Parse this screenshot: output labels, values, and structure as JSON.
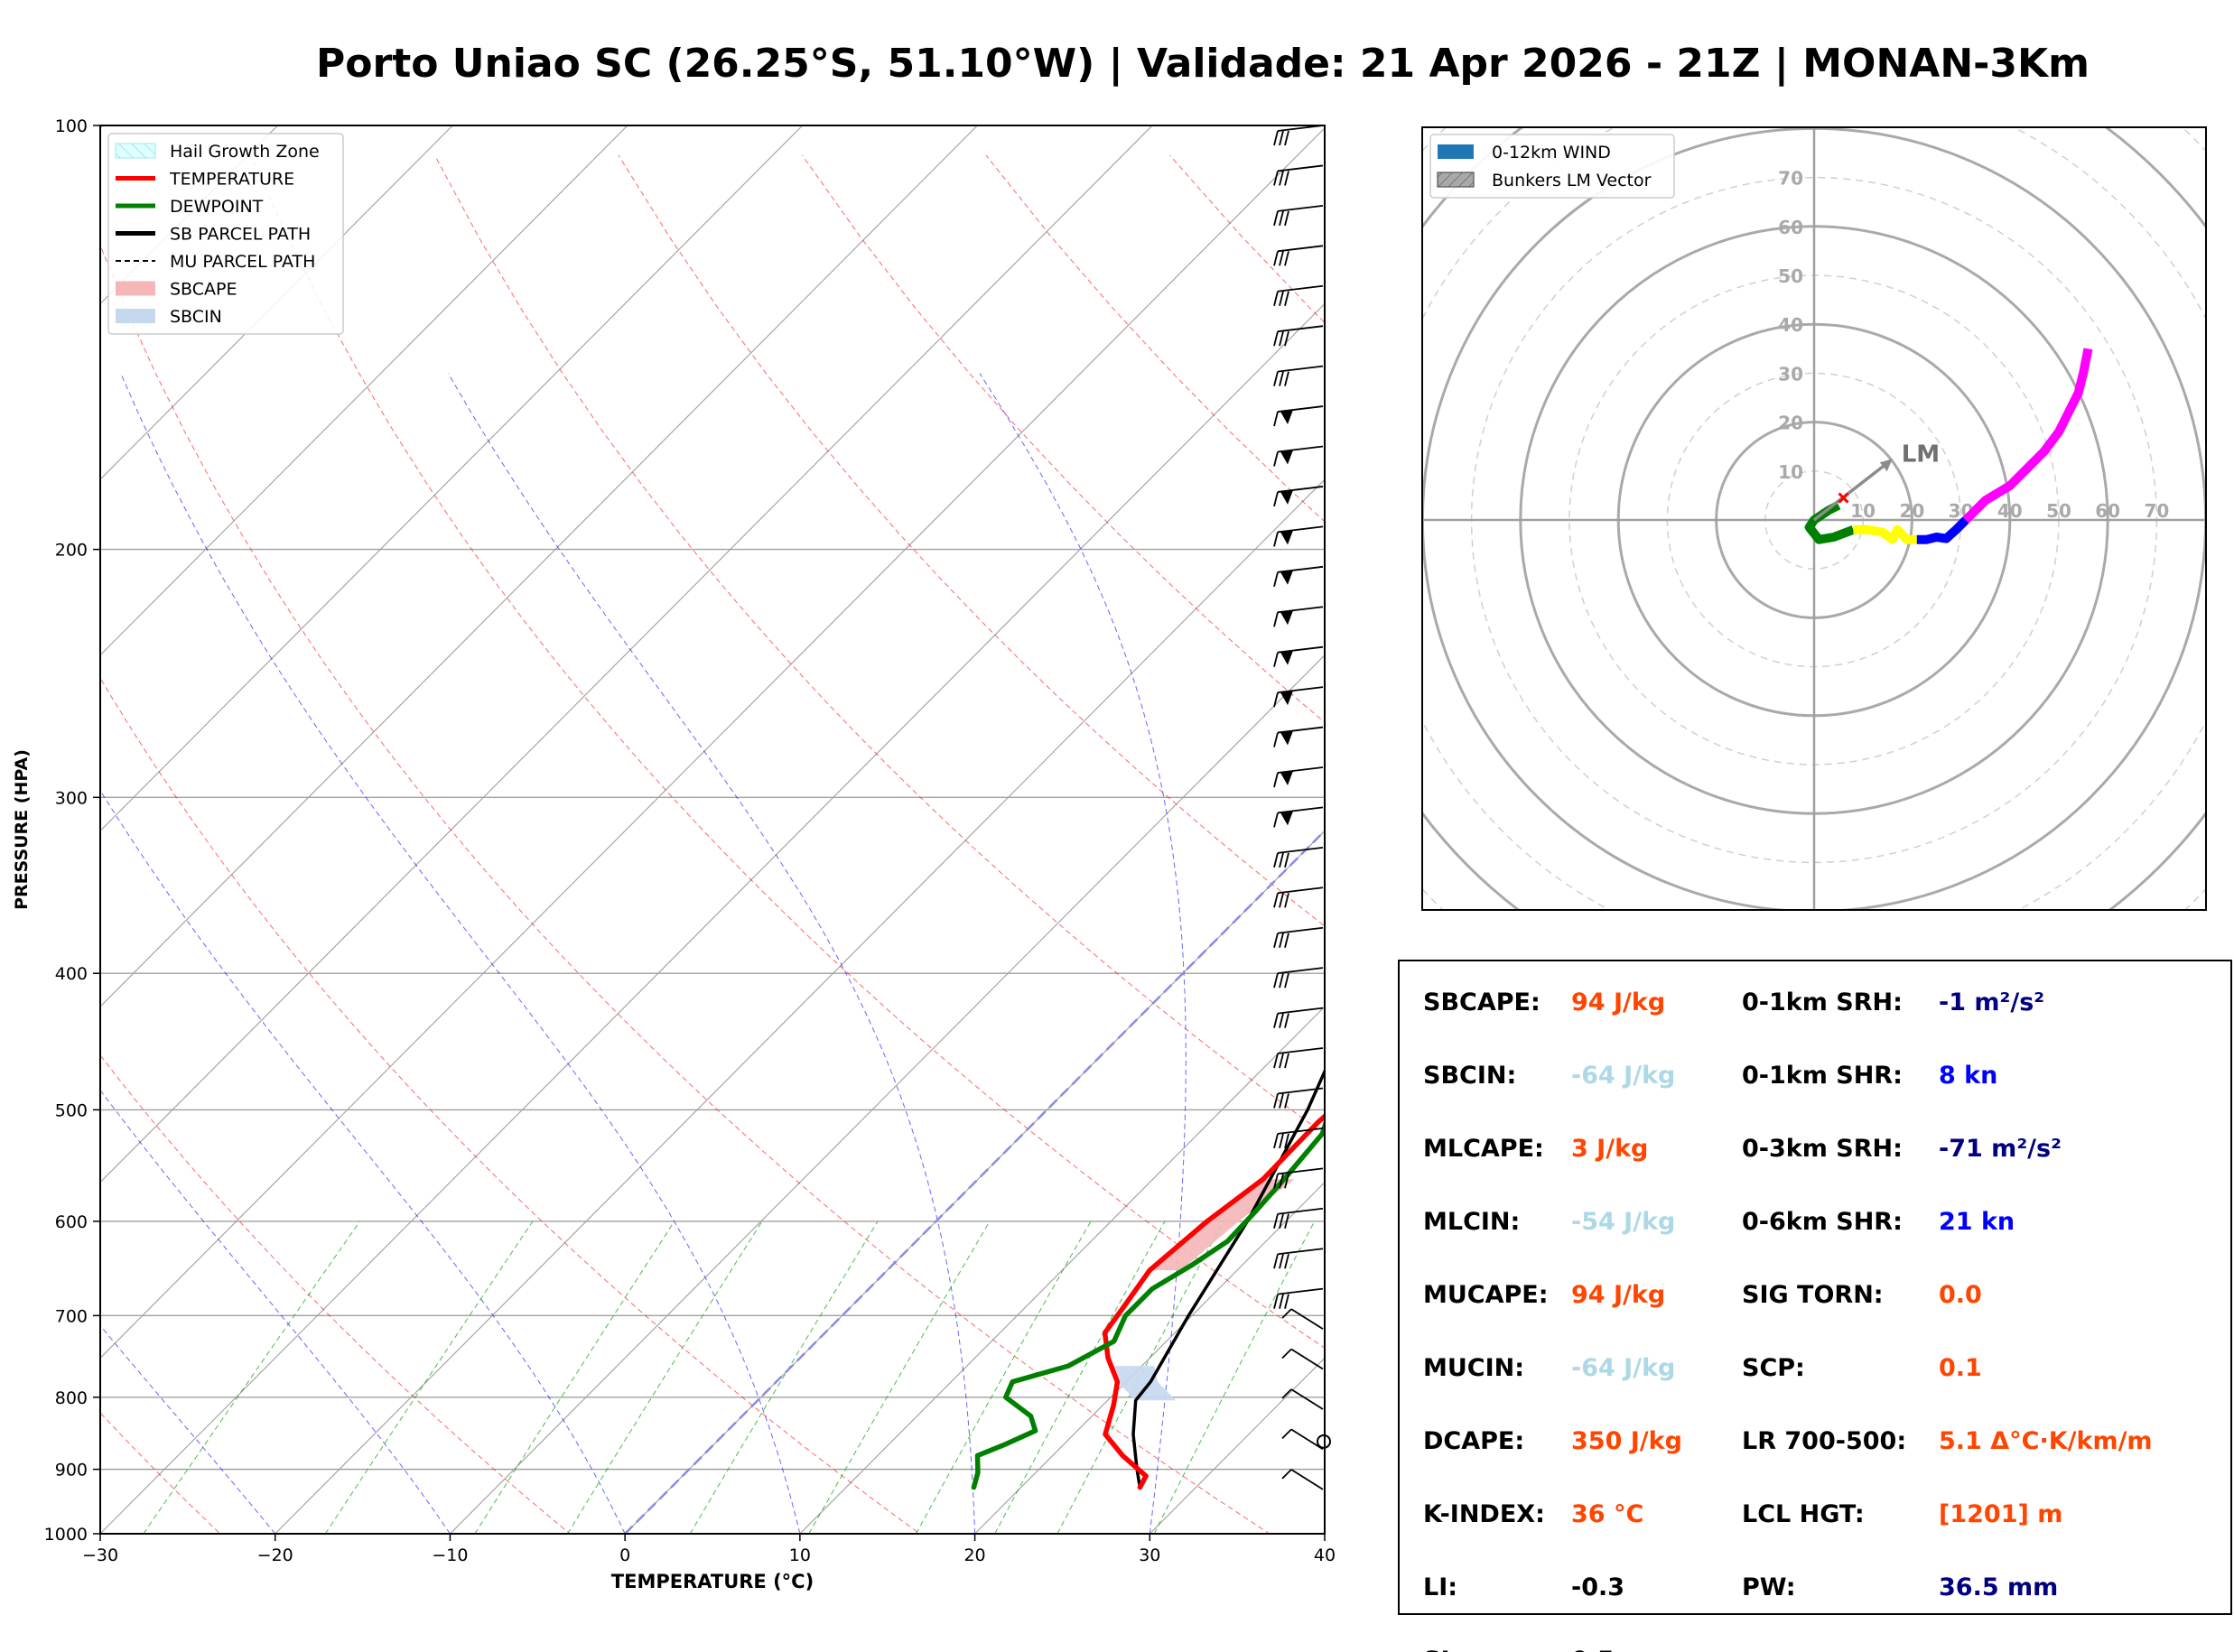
{
  "title": "Porto Uniao SC (26.25°S, 51.10°W) | Validade: 21 Apr 2026 - 21Z | MONAN-3Km",
  "colors": {
    "temperature": "#ff0000",
    "dewpoint": "#008000",
    "parcel": "#000000",
    "isotherm": "#808080",
    "dry_adiabat": "#ff0000",
    "moist_adiabat": "#0000ff",
    "mixing_ratio": "#00a000",
    "sbcape": "#f4b6b6",
    "sbcin": "#c6d8ee",
    "hail_zone": "#e0ffff",
    "label_orange": "#ff4500",
    "label_lightblue": "#add8e6",
    "label_navy": "#000080",
    "label_blue": "#0000ff",
    "label_black": "#000000",
    "hodo_green": "#008000",
    "hodo_yellow": "#ffff00",
    "hodo_blue": "#0000ff",
    "hodo_magenta": "#ff00ff"
  },
  "chart_data": [
    {
      "type": "line",
      "chart_kind": "skew-T log-p",
      "xlabel": "TEMPERATURE (°C)",
      "ylabel": "PRESSURE (HPA)",
      "xlim": [
        -30,
        40
      ],
      "ylim": [
        1000,
        100
      ],
      "y_scale": "log",
      "x_ticks": [
        -30,
        -20,
        -10,
        0,
        10,
        20,
        30,
        40
      ],
      "x_tick_labels": [
        "−30",
        "−20",
        "−10",
        "0",
        "10",
        "20",
        "30",
        "40"
      ],
      "y_ticks": [
        1000,
        900,
        800,
        700,
        600,
        500,
        400,
        300,
        200,
        100
      ],
      "legend_position": "upper-left",
      "legend": [
        {
          "label": "Hail Growth Zone",
          "kind": "patch-hatch",
          "color": "#e0ffff"
        },
        {
          "label": "TEMPERATURE",
          "kind": "line",
          "color": "#ff0000"
        },
        {
          "label": "DEWPOINT",
          "kind": "line",
          "color": "#008000"
        },
        {
          "label": "SB PARCEL PATH",
          "kind": "line",
          "color": "#000000"
        },
        {
          "label": "MU PARCEL PATH",
          "kind": "dash",
          "color": "#000000"
        },
        {
          "label": "SBCAPE",
          "kind": "patch",
          "color": "#f4b6b6"
        },
        {
          "label": "SBCIN",
          "kind": "patch",
          "color": "#c6d8ee"
        }
      ],
      "series": [
        {
          "name": "TEMPERATURE",
          "points": [
            [
              927,
              26.8
            ],
            [
              910,
              26.5
            ],
            [
              880,
              24.0
            ],
            [
              850,
              21.8
            ],
            [
              810,
              20.6
            ],
            [
              780,
              19.5
            ],
            [
              750,
              17.6
            ],
            [
              720,
              16.0
            ],
            [
              690,
              15.6
            ],
            [
              650,
              15.0
            ],
            [
              600,
              15.5
            ],
            [
              560,
              16.3
            ],
            [
              510,
              16.2
            ],
            [
              470,
              16.6
            ],
            [
              440,
              16.2
            ],
            [
              410,
              14.6
            ],
            [
              380,
              12.7
            ],
            [
              350,
              10.6
            ],
            [
              320,
              8.5
            ],
            [
              300,
              6.9
            ],
            [
              280,
              4.6
            ],
            [
              250,
              1.2
            ],
            [
              230,
              -1.7
            ],
            [
              210,
              -4.8
            ],
            [
              195,
              -7.2
            ],
            [
              180,
              -9.8
            ],
            [
              165,
              -12.3
            ],
            [
              150,
              -14.7
            ],
            [
              135,
              -15.8
            ],
            [
              122,
              -13.6
            ],
            [
              112,
              -15.7
            ],
            [
              100,
              -13.4
            ]
          ]
        },
        {
          "name": "DEWPOINT",
          "points": [
            [
              927,
              17.3
            ],
            [
              905,
              16.7
            ],
            [
              880,
              15.7
            ],
            [
              865,
              16.6
            ],
            [
              845,
              17.6
            ],
            [
              825,
              16.5
            ],
            [
              800,
              14.0
            ],
            [
              780,
              13.5
            ],
            [
              760,
              15.8
            ],
            [
              730,
              17.0
            ],
            [
              700,
              16.2
            ],
            [
              670,
              16.2
            ],
            [
              645,
              17.1
            ],
            [
              620,
              17.8
            ],
            [
              590,
              17.7
            ],
            [
              560,
              17.5
            ],
            [
              520,
              17.1
            ],
            [
              490,
              15.7
            ],
            [
              465,
              14.9
            ],
            [
              430,
              16.2
            ],
            [
              400,
              15.4
            ],
            [
              370,
              13.8
            ],
            [
              340,
              11.8
            ],
            [
              310,
              9.0
            ],
            [
              290,
              6.2
            ],
            [
              270,
              2.2
            ],
            [
              240,
              -4.0
            ],
            [
              220,
              -8.8
            ],
            [
              200,
              -14.7
            ],
            [
              180,
              -17.8
            ],
            [
              160,
              -22.5
            ],
            [
              140,
              -26.7
            ],
            [
              125,
              -27.4
            ],
            [
              112,
              -26.4
            ],
            [
              100,
              -24.6
            ]
          ]
        },
        {
          "name": "SB PARCEL PATH",
          "points": [
            [
              927,
              26.8
            ],
            [
              900,
              25.6
            ],
            [
              850,
              23.4
            ],
            [
              804,
              21.6
            ],
            [
              780,
              21.4
            ],
            [
              700,
              19.8
            ],
            [
              600,
              17.8
            ],
            [
              500,
              14.9
            ],
            [
              400,
              10.6
            ],
            [
              350,
              7.9
            ],
            [
              300,
              4.9
            ],
            [
              250,
              0.6
            ],
            [
              200,
              -5.2
            ],
            [
              150,
              -14.2
            ],
            [
              120,
              -21.8
            ],
            [
              100,
              -29.0
            ]
          ]
        }
      ],
      "sbcape_segments": [
        [
          [
            650,
            15.0
          ],
          [
            600,
            15.5
          ],
          [
            560,
            16.3
          ]
        ]
      ],
      "sbcin_segments": [
        [
          [
            804,
            21.6
          ],
          [
            780,
            19.5
          ],
          [
            760,
            18.4
          ]
        ]
      ],
      "hail_growth_zone": {
        "p_top": 420,
        "p_bottom": 500
      },
      "wind_barbs_count": 35
    },
    {
      "type": "line",
      "chart_kind": "hodograph",
      "radial_labels": [
        "10",
        "20",
        "30",
        "40",
        "50",
        "60",
        "70"
      ],
      "axis_labels": [
        "10",
        "20",
        "30",
        "40",
        "50",
        "60",
        "70"
      ],
      "legend_position": "top-left",
      "legend": [
        {
          "label": "0-12km WIND",
          "kind": "patch",
          "color": "#1f77b4"
        },
        {
          "label": "Bunkers LM Vector",
          "kind": "patch-hatch",
          "color": "#a0a0a0"
        }
      ],
      "annotation": "LM",
      "bunkers_lm": [
        16,
        12.5
      ],
      "storm_marker": [
        6,
        4.5
      ],
      "series": [
        {
          "name": "0-3km",
          "color": "#008000",
          "points": [
            [
              5,
              3
            ],
            [
              3,
              2
            ],
            [
              0,
              0
            ],
            [
              -1,
              -1.5
            ],
            [
              1,
              -4
            ],
            [
              4,
              -3.5
            ],
            [
              8,
              -2
            ]
          ]
        },
        {
          "name": "3-6km",
          "color": "#ffff00",
          "points": [
            [
              8,
              -2
            ],
            [
              11,
              -2
            ],
            [
              14,
              -2.5
            ],
            [
              16,
              -4
            ],
            [
              17,
              -2
            ],
            [
              19,
              -4
            ],
            [
              21,
              -4
            ]
          ]
        },
        {
          "name": "6-9km",
          "color": "#0000ff",
          "points": [
            [
              21,
              -4
            ],
            [
              23,
              -4
            ],
            [
              25,
              -3.5
            ],
            [
              27,
              -3.8
            ],
            [
              29,
              -2
            ],
            [
              31,
              0
            ]
          ]
        },
        {
          "name": "9-12km",
          "color": "#ff00ff",
          "points": [
            [
              31,
              0
            ],
            [
              35,
              4
            ],
            [
              40,
              7
            ],
            [
              43,
              10
            ],
            [
              47,
              14
            ],
            [
              50,
              18
            ],
            [
              52,
              22
            ],
            [
              54,
              26
            ],
            [
              55,
              30
            ],
            [
              56,
              35
            ]
          ]
        }
      ]
    }
  ],
  "params": [
    {
      "label": "SBCAPE:",
      "value": "94 J/kg",
      "color": "#ff4500"
    },
    {
      "label": "SBCIN:",
      "value": "-64 J/kg",
      "color": "#add8e6"
    },
    {
      "label": "MLCAPE:",
      "value": "3 J/kg",
      "color": "#ff4500"
    },
    {
      "label": "MLCIN:",
      "value": "-54 J/kg",
      "color": "#add8e6"
    },
    {
      "label": "MUCAPE:",
      "value": "94 J/kg",
      "color": "#ff4500"
    },
    {
      "label": "MUCIN:",
      "value": "-64 J/kg",
      "color": "#add8e6"
    },
    {
      "label": "DCAPE:",
      "value": "350 J/kg",
      "color": "#ff4500"
    },
    {
      "label": "K-INDEX:",
      "value": "36 °C",
      "color": "#ff4500"
    },
    {
      "label": "LI:",
      "value": "-0.3",
      "color": "#000000"
    },
    {
      "label": "SI:",
      "value": "0.5",
      "color": "#000000"
    },
    {
      "label": "0-1km SRH:",
      "value": "-1 m²/s²",
      "color": "#000080"
    },
    {
      "label": "0-1km SHR:",
      "value": "8 kn",
      "color": "#0000ff"
    },
    {
      "label": "0-3km SRH:",
      "value": "-71 m²/s²",
      "color": "#000080"
    },
    {
      "label": "0-6km SHR:",
      "value": "21 kn",
      "color": "#0000ff"
    },
    {
      "label": "SIG TORN:",
      "value": "0.0",
      "color": "#ff4500"
    },
    {
      "label": "SCP:",
      "value": "0.1",
      "color": "#ff4500"
    },
    {
      "label": "LR 700-500:",
      "value": "5.1 Δ°C·K/km/m",
      "color": "#ff4500"
    },
    {
      "label": "LCL HGT:",
      "value": "[1201] m",
      "color": "#ff4500"
    },
    {
      "label": "PW:",
      "value": "36.5 mm",
      "color": "#000080"
    }
  ]
}
